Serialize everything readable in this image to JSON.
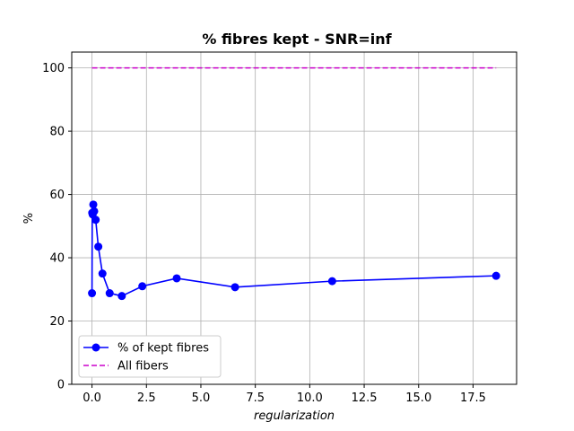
{
  "chart_data": {
    "type": "line",
    "title": "% fibres kept - SNR=inf",
    "xlabel": "regularization",
    "ylabel": "%",
    "xlim": [
      -0.93,
      19.5
    ],
    "ylim": [
      0,
      105
    ],
    "xticks": [
      0.0,
      2.5,
      5.0,
      7.5,
      10.0,
      12.5,
      15.0,
      17.5
    ],
    "xtick_labels": [
      "0.0",
      "2.5",
      "5.0",
      "7.5",
      "10.0",
      "12.5",
      "15.0",
      "17.5"
    ],
    "yticks": [
      0,
      20,
      40,
      60,
      80,
      100
    ],
    "ytick_labels": [
      "0",
      "20",
      "40",
      "60",
      "80",
      "100"
    ],
    "grid": true,
    "legend_position": "lower-left",
    "series": [
      {
        "name": "% of kept fibres",
        "color": "#0000ff",
        "style": "solid",
        "marker": "circle",
        "x": [
          0.0,
          0.01,
          0.03,
          0.06,
          0.1,
          0.17,
          0.29,
          0.48,
          0.81,
          1.37,
          2.31,
          3.89,
          6.57,
          11.03,
          18.56
        ],
        "y": [
          28.8,
          54.2,
          53.7,
          56.8,
          54.7,
          52.0,
          43.5,
          35.0,
          28.8,
          27.9,
          31.0,
          33.5,
          30.7,
          32.6,
          34.3
        ]
      },
      {
        "name": "All fibers",
        "color": "#cc00cc",
        "style": "dashed",
        "marker": "none",
        "x": [
          0.0,
          18.56
        ],
        "y": [
          100,
          100
        ]
      }
    ]
  }
}
